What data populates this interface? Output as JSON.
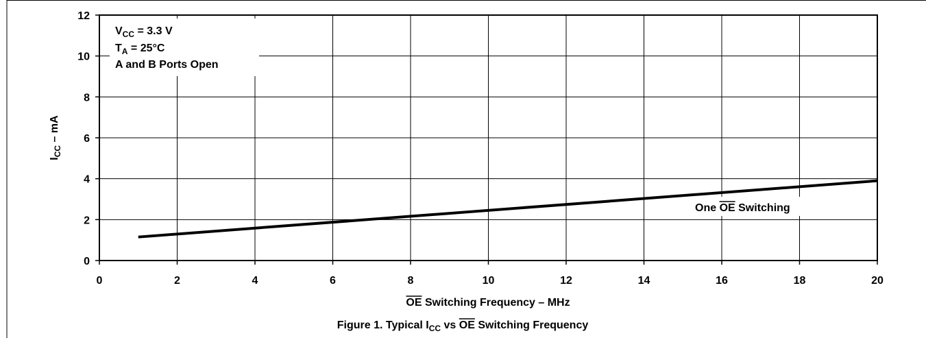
{
  "chart_data": {
    "type": "line",
    "title": "Figure 1. Typical I",
    "title_sub": "CC",
    "title_rest1": " vs ",
    "title_over": "OE",
    "title_rest2": " Switching Frequency",
    "xlabel_over": "OE",
    "xlabel_rest": " Switching Frequency – MHz",
    "ylabel_main": "I",
    "ylabel_sub": "CC",
    "ylabel_rest": " – mA",
    "xlim": [
      0,
      20
    ],
    "ylim": [
      0,
      12
    ],
    "xticks": [
      "0",
      "2",
      "4",
      "6",
      "8",
      "10",
      "12",
      "14",
      "16",
      "18",
      "20"
    ],
    "yticks": [
      "0",
      "2",
      "4",
      "6",
      "8",
      "10",
      "12"
    ],
    "grid": true,
    "series": [
      {
        "name_pre": "One ",
        "name_over": "OE",
        "name_post": " Switching",
        "color": "#000000",
        "x": [
          1,
          20
        ],
        "y": [
          1.15,
          3.9
        ]
      }
    ],
    "conditions": {
      "vcc_main": "V",
      "vcc_sub": "CC",
      "vcc_rest": " = 3.3 V",
      "ta_main": "T",
      "ta_sub": "A",
      "ta_rest": " = 25°C",
      "ports": "A and B Ports Open"
    }
  }
}
